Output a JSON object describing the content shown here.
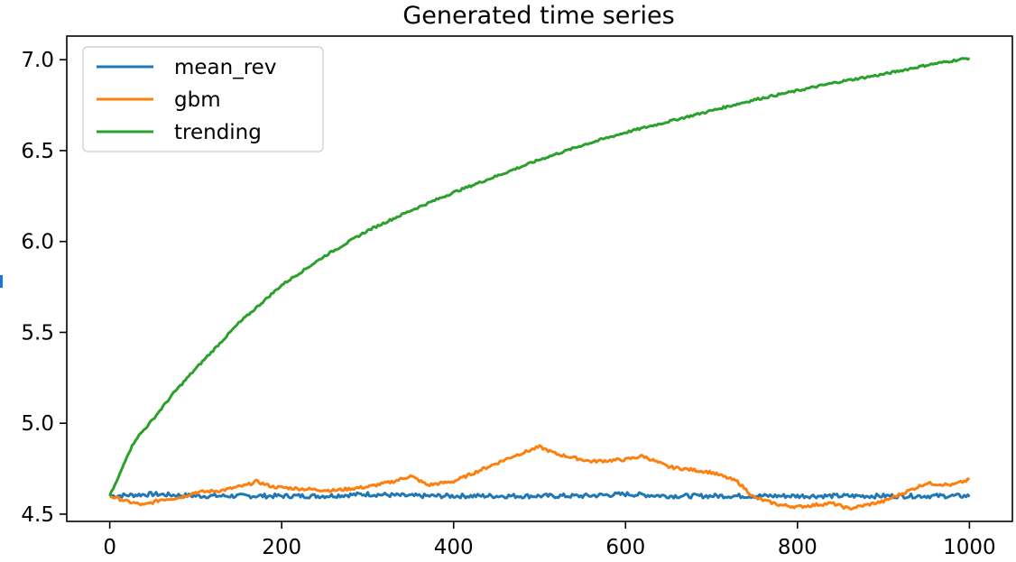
{
  "chart_data": {
    "type": "line",
    "title": "Generated time series",
    "xlabel": "",
    "ylabel": "",
    "xlim": [
      -50,
      1050
    ],
    "ylim": [
      4.46,
      7.13
    ],
    "xticks": [
      0,
      200,
      400,
      600,
      800,
      1000
    ],
    "yticks": [
      4.5,
      5.0,
      5.5,
      6.0,
      6.5,
      7.0
    ],
    "xtick_labels": [
      "0",
      "200",
      "400",
      "600",
      "800",
      "1000"
    ],
    "ytick_labels": [
      "4.5",
      "5.0",
      "5.5",
      "6.0",
      "6.5",
      "7.0"
    ],
    "grid": false,
    "legend": {
      "location": "upper left",
      "entries": [
        "mean_rev",
        "gbm",
        "trending"
      ]
    },
    "series": [
      {
        "name": "mean_rev",
        "color": "#1f77b4",
        "x": [
          0,
          50,
          100,
          150,
          200,
          250,
          300,
          350,
          400,
          450,
          500,
          550,
          600,
          650,
          700,
          750,
          800,
          850,
          900,
          950,
          1000
        ],
        "y": [
          4.6,
          4.61,
          4.6,
          4.6,
          4.6,
          4.6,
          4.61,
          4.6,
          4.6,
          4.6,
          4.6,
          4.6,
          4.61,
          4.6,
          4.6,
          4.6,
          4.6,
          4.6,
          4.6,
          4.6,
          4.6
        ],
        "noise": 0.012
      },
      {
        "name": "gbm",
        "color": "#ff7f0e",
        "x": [
          0,
          20,
          40,
          60,
          80,
          100,
          130,
          160,
          170,
          190,
          220,
          260,
          300,
          330,
          350,
          370,
          400,
          440,
          470,
          500,
          520,
          560,
          600,
          620,
          650,
          700,
          730,
          750,
          780,
          800,
          840,
          860,
          900,
          930,
          950,
          980,
          1000
        ],
        "y": [
          4.6,
          4.57,
          4.55,
          4.58,
          4.59,
          4.62,
          4.63,
          4.66,
          4.68,
          4.65,
          4.64,
          4.63,
          4.65,
          4.68,
          4.71,
          4.66,
          4.68,
          4.76,
          4.82,
          4.87,
          4.83,
          4.79,
          4.8,
          4.82,
          4.76,
          4.73,
          4.68,
          4.59,
          4.55,
          4.54,
          4.56,
          4.53,
          4.57,
          4.63,
          4.67,
          4.66,
          4.69
        ],
        "noise": 0.008
      },
      {
        "name": "trending",
        "color": "#2ca02c",
        "x": [
          0,
          10,
          20,
          30,
          50,
          75,
          100,
          150,
          200,
          250,
          300,
          350,
          400,
          450,
          500,
          550,
          600,
          650,
          700,
          750,
          800,
          850,
          900,
          950,
          1000
        ],
        "y": [
          4.6,
          4.7,
          4.82,
          4.91,
          5.02,
          5.17,
          5.3,
          5.55,
          5.76,
          5.92,
          6.06,
          6.17,
          6.27,
          6.36,
          6.45,
          6.53,
          6.6,
          6.66,
          6.72,
          6.78,
          6.83,
          6.88,
          6.92,
          6.97,
          7.01
        ],
        "noise": 0.006
      }
    ]
  }
}
